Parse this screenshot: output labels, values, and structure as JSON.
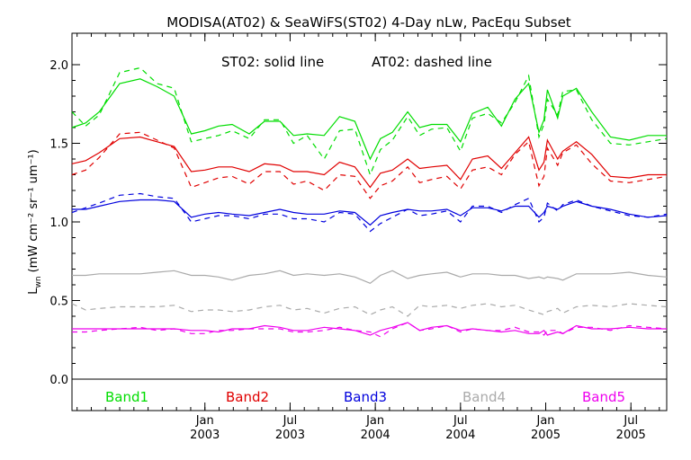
{
  "chart_data": {
    "type": "line",
    "title": "MODISA(AT02) & SeaWiFS(ST02) 4-Day nLw, PacEqu Subset",
    "annotation_solid": "ST02: solid line",
    "annotation_dashed": "AT02: dashed line",
    "ylabel": {
      "main": "L",
      "sub": "wn",
      "units": "(mW cm⁻² sr⁻¹ um⁻¹)"
    },
    "ylim": [
      -0.2,
      2.2
    ],
    "yticks": [
      {
        "v": 0.0,
        "label": "0.0"
      },
      {
        "v": 0.5,
        "label": "0.5"
      },
      {
        "v": 1.0,
        "label": "1.0"
      },
      {
        "v": 1.5,
        "label": "1.5"
      },
      {
        "v": 2.0,
        "label": "2.0"
      }
    ],
    "xlim": [
      2002.22,
      2005.71
    ],
    "xticks": [
      {
        "v": 2003.0,
        "label1": "Jan",
        "label2": "2003"
      },
      {
        "v": 2003.5,
        "label1": "Jul",
        "label2": "2003"
      },
      {
        "v": 2004.0,
        "label1": "Jan",
        "label2": "2004"
      },
      {
        "v": 2004.5,
        "label1": "Jul",
        "label2": "2004"
      },
      {
        "v": 2005.0,
        "label1": "Jan",
        "label2": "2005"
      },
      {
        "v": 2005.5,
        "label1": "Jul",
        "label2": "2005"
      }
    ],
    "x": [
      2002.22,
      2002.3,
      2002.38,
      2002.5,
      2002.62,
      2002.72,
      2002.82,
      2002.92,
      2003.0,
      2003.08,
      2003.16,
      2003.26,
      2003.35,
      2003.44,
      2003.52,
      2003.6,
      2003.7,
      2003.79,
      2003.88,
      2003.97,
      2004.03,
      2004.1,
      2004.19,
      2004.26,
      2004.33,
      2004.42,
      2004.5,
      2004.57,
      2004.66,
      2004.74,
      2004.82,
      2004.9,
      2004.96,
      2004.99,
      2005.01,
      2005.07,
      2005.1,
      2005.18,
      2005.27,
      2005.38,
      2005.49,
      2005.6,
      2005.71
    ],
    "series": [
      {
        "name": "Band1",
        "color": "#00dd00",
        "solid": [
          1.6,
          1.63,
          1.7,
          1.88,
          1.91,
          1.86,
          1.8,
          1.56,
          1.58,
          1.61,
          1.62,
          1.56,
          1.64,
          1.64,
          1.55,
          1.56,
          1.55,
          1.67,
          1.64,
          1.4,
          1.53,
          1.57,
          1.7,
          1.6,
          1.62,
          1.62,
          1.51,
          1.69,
          1.73,
          1.61,
          1.78,
          1.88,
          1.57,
          1.65,
          1.84,
          1.66,
          1.8,
          1.85,
          1.7,
          1.54,
          1.52,
          1.55,
          1.55
        ],
        "dashed": [
          1.7,
          1.61,
          1.68,
          1.95,
          1.98,
          1.88,
          1.85,
          1.51,
          1.53,
          1.55,
          1.58,
          1.53,
          1.65,
          1.65,
          1.5,
          1.55,
          1.4,
          1.58,
          1.59,
          1.3,
          1.46,
          1.52,
          1.67,
          1.55,
          1.59,
          1.6,
          1.45,
          1.66,
          1.69,
          1.63,
          1.76,
          1.93,
          1.54,
          1.62,
          1.78,
          1.68,
          1.83,
          1.84,
          1.65,
          1.5,
          1.49,
          1.51,
          1.53
        ]
      },
      {
        "name": "Band2",
        "color": "#e00000",
        "solid": [
          1.37,
          1.39,
          1.44,
          1.53,
          1.54,
          1.51,
          1.48,
          1.32,
          1.33,
          1.35,
          1.35,
          1.32,
          1.37,
          1.36,
          1.32,
          1.32,
          1.3,
          1.38,
          1.35,
          1.22,
          1.31,
          1.33,
          1.4,
          1.34,
          1.35,
          1.36,
          1.27,
          1.4,
          1.42,
          1.34,
          1.44,
          1.54,
          1.33,
          1.38,
          1.52,
          1.4,
          1.45,
          1.51,
          1.43,
          1.29,
          1.28,
          1.3,
          1.3
        ],
        "dashed": [
          1.3,
          1.33,
          1.41,
          1.56,
          1.57,
          1.52,
          1.47,
          1.22,
          1.25,
          1.28,
          1.29,
          1.24,
          1.32,
          1.32,
          1.24,
          1.26,
          1.2,
          1.3,
          1.29,
          1.15,
          1.23,
          1.26,
          1.35,
          1.25,
          1.27,
          1.29,
          1.21,
          1.33,
          1.35,
          1.3,
          1.43,
          1.51,
          1.23,
          1.29,
          1.47,
          1.36,
          1.44,
          1.49,
          1.37,
          1.26,
          1.25,
          1.27,
          1.29
        ]
      },
      {
        "name": "Band3",
        "color": "#0000dd",
        "solid": [
          1.08,
          1.08,
          1.1,
          1.13,
          1.14,
          1.14,
          1.13,
          1.03,
          1.05,
          1.06,
          1.05,
          1.04,
          1.06,
          1.08,
          1.06,
          1.05,
          1.05,
          1.07,
          1.06,
          0.98,
          1.04,
          1.06,
          1.08,
          1.07,
          1.07,
          1.08,
          1.04,
          1.09,
          1.09,
          1.07,
          1.1,
          1.1,
          1.03,
          1.06,
          1.1,
          1.08,
          1.1,
          1.13,
          1.1,
          1.08,
          1.05,
          1.03,
          1.04
        ],
        "dashed": [
          1.06,
          1.09,
          1.12,
          1.17,
          1.18,
          1.16,
          1.15,
          1.0,
          1.02,
          1.04,
          1.04,
          1.02,
          1.05,
          1.05,
          1.02,
          1.02,
          1.0,
          1.06,
          1.05,
          0.94,
          0.99,
          1.03,
          1.08,
          1.04,
          1.05,
          1.07,
          1.0,
          1.1,
          1.1,
          1.06,
          1.11,
          1.15,
          1.0,
          1.03,
          1.12,
          1.07,
          1.11,
          1.14,
          1.1,
          1.07,
          1.04,
          1.03,
          1.05
        ]
      },
      {
        "name": "Band4",
        "color": "#aaaaaa",
        "solid": [
          0.66,
          0.66,
          0.67,
          0.67,
          0.67,
          0.68,
          0.69,
          0.66,
          0.66,
          0.65,
          0.63,
          0.66,
          0.67,
          0.69,
          0.66,
          0.67,
          0.66,
          0.67,
          0.65,
          0.61,
          0.66,
          0.69,
          0.64,
          0.66,
          0.67,
          0.68,
          0.65,
          0.67,
          0.67,
          0.66,
          0.66,
          0.64,
          0.65,
          0.64,
          0.65,
          0.64,
          0.63,
          0.67,
          0.67,
          0.67,
          0.68,
          0.66,
          0.65
        ],
        "dashed": [
          0.48,
          0.44,
          0.45,
          0.46,
          0.46,
          0.46,
          0.47,
          0.43,
          0.44,
          0.44,
          0.43,
          0.44,
          0.46,
          0.47,
          0.44,
          0.45,
          0.42,
          0.45,
          0.46,
          0.41,
          0.44,
          0.46,
          0.4,
          0.47,
          0.46,
          0.47,
          0.45,
          0.47,
          0.48,
          0.46,
          0.47,
          0.44,
          0.42,
          0.41,
          0.43,
          0.45,
          0.42,
          0.46,
          0.47,
          0.46,
          0.48,
          0.47,
          0.46
        ]
      },
      {
        "name": "Band5",
        "color": "#ee00ee",
        "solid": [
          0.32,
          0.32,
          0.32,
          0.32,
          0.32,
          0.32,
          0.32,
          0.31,
          0.31,
          0.3,
          0.32,
          0.32,
          0.34,
          0.33,
          0.31,
          0.31,
          0.33,
          0.32,
          0.31,
          0.28,
          0.31,
          0.33,
          0.36,
          0.31,
          0.33,
          0.34,
          0.31,
          0.32,
          0.31,
          0.3,
          0.31,
          0.29,
          0.29,
          0.31,
          0.28,
          0.3,
          0.29,
          0.34,
          0.32,
          0.32,
          0.33,
          0.32,
          0.32
        ],
        "dashed": [
          0.3,
          0.3,
          0.31,
          0.32,
          0.33,
          0.31,
          0.32,
          0.29,
          0.29,
          0.31,
          0.31,
          0.32,
          0.32,
          0.32,
          0.3,
          0.3,
          0.31,
          0.33,
          0.31,
          0.3,
          0.27,
          0.32,
          0.36,
          0.31,
          0.32,
          0.34,
          0.3,
          0.32,
          0.31,
          0.31,
          0.33,
          0.3,
          0.3,
          0.28,
          0.31,
          0.31,
          0.29,
          0.33,
          0.33,
          0.31,
          0.34,
          0.33,
          0.32
        ]
      }
    ],
    "grid": false,
    "legend": "bottom, inside plot"
  }
}
